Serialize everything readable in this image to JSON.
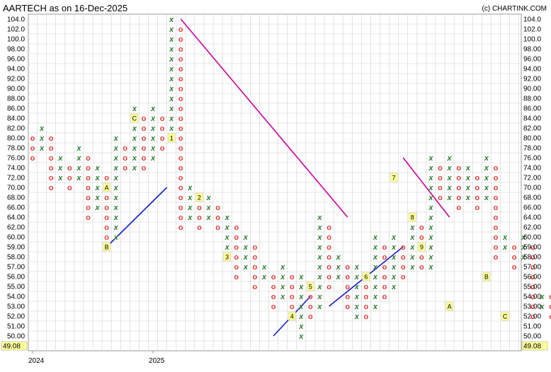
{
  "chart_data": {
    "type": "point-and-figure",
    "title": "AARTECH as on 16-Dec-2025",
    "copyright": "(c) CHARTINK.COM",
    "y_ticks": [
      "104.0",
      "102.0",
      "100.0",
      "98.00",
      "96.00",
      "94.00",
      "92.00",
      "90.00",
      "88.00",
      "86.00",
      "84.00",
      "82.00",
      "80.00",
      "78.00",
      "76.00",
      "74.00",
      "72.00",
      "70.00",
      "68.00",
      "66.00",
      "64.00",
      "62.00",
      "60.00",
      "59.00",
      "58.00",
      "57.00",
      "56.00",
      "55.00",
      "54.00",
      "53.00",
      "52.00",
      "51.00",
      "50.00"
    ],
    "last_price": "49.08",
    "x_labels": [
      {
        "label": "2024",
        "col": 0
      },
      {
        "label": "2025",
        "col": 13
      }
    ],
    "colors": {
      "x": "#2e7d32",
      "o": "#e53935",
      "trend_down": "#cc0099",
      "trend_up": "#1a1acc",
      "grid": "#d0d0d0",
      "price_box": "#ffff99",
      "month_box": "#ffff99"
    },
    "columns": [
      {
        "t": "O",
        "top": "80.00",
        "bottom": "76.00"
      },
      {
        "t": "X",
        "bottom": "78.00",
        "top": "82.00"
      },
      {
        "t": "O",
        "top": "80.00",
        "bottom": "70.00"
      },
      {
        "t": "X",
        "bottom": "72.00",
        "top": "76.00"
      },
      {
        "t": "O",
        "top": "74.00",
        "bottom": "70.00"
      },
      {
        "t": "X",
        "bottom": "72.00",
        "top": "78.00"
      },
      {
        "t": "O",
        "top": "76.00",
        "bottom": "64.00"
      },
      {
        "t": "X",
        "bottom": "66.00",
        "top": "74.00"
      },
      {
        "t": "O",
        "top": "72.00",
        "bottom": "59.00"
      },
      {
        "t": "X",
        "bottom": "60.00",
        "top": "80.00"
      },
      {
        "t": "O",
        "top": "78.00",
        "bottom": "74.00"
      },
      {
        "t": "X",
        "bottom": "74.00",
        "top": "86.00"
      },
      {
        "t": "O",
        "top": "84.00",
        "bottom": "74.00"
      },
      {
        "t": "X",
        "bottom": "76.00",
        "top": "86.00"
      },
      {
        "t": "O",
        "top": "84.00",
        "bottom": "78.00"
      },
      {
        "t": "X",
        "bottom": "80.00",
        "top": "104.0"
      },
      {
        "t": "O",
        "top": "102.0",
        "bottom": "62.00"
      },
      {
        "t": "X",
        "bottom": "64.00",
        "top": "70.00"
      },
      {
        "t": "O",
        "top": "68.00",
        "bottom": "62.00"
      },
      {
        "t": "X",
        "bottom": "64.00",
        "top": "68.00"
      },
      {
        "t": "O",
        "top": "66.00",
        "bottom": "62.00"
      },
      {
        "t": "X",
        "bottom": "58.00",
        "top": "64.00"
      },
      {
        "t": "O",
        "top": "62.00",
        "bottom": "56.00"
      },
      {
        "t": "X",
        "bottom": "57.00",
        "top": "60.00"
      },
      {
        "t": "O",
        "top": "59.00",
        "bottom": "55.00"
      },
      {
        "t": "X",
        "bottom": "56.00",
        "top": "57.00"
      },
      {
        "t": "O",
        "top": "56.00",
        "bottom": "53.00"
      },
      {
        "t": "X",
        "bottom": "54.00",
        "top": "57.00"
      },
      {
        "t": "O",
        "top": "56.00",
        "bottom": "52.00"
      },
      {
        "t": "X",
        "bottom": "50.00",
        "top": "56.00"
      },
      {
        "t": "O",
        "top": "55.00",
        "bottom": "52.00"
      },
      {
        "t": "X",
        "bottom": "53.00",
        "top": "64.00"
      },
      {
        "t": "O",
        "top": "62.00",
        "bottom": "55.00"
      },
      {
        "t": "X",
        "bottom": "56.00",
        "top": "58.00"
      },
      {
        "t": "O",
        "top": "57.00",
        "bottom": "53.00"
      },
      {
        "t": "X",
        "bottom": "52.00",
        "top": "57.00"
      },
      {
        "t": "O",
        "top": "56.00",
        "bottom": "52.00"
      },
      {
        "t": "X",
        "bottom": "53.00",
        "top": "60.00"
      },
      {
        "t": "O",
        "top": "59.00",
        "bottom": "54.00"
      },
      {
        "t": "X",
        "bottom": "55.00",
        "top": "60.00"
      },
      {
        "t": "O",
        "top": "59.00",
        "bottom": "56.00"
      },
      {
        "t": "X",
        "bottom": "57.00",
        "top": "62.00"
      },
      {
        "t": "O",
        "top": "62.00",
        "bottom": "57.00"
      },
      {
        "t": "X",
        "bottom": "57.00",
        "top": "76.00"
      },
      {
        "t": "O",
        "top": "74.00",
        "bottom": "68.00"
      },
      {
        "t": "X",
        "bottom": "68.00",
        "top": "76.00"
      },
      {
        "t": "O",
        "top": "74.00",
        "bottom": "66.00"
      },
      {
        "t": "X",
        "bottom": "68.00",
        "top": "74.00"
      },
      {
        "t": "O",
        "top": "72.00",
        "bottom": "66.00"
      },
      {
        "t": "X",
        "bottom": "68.00",
        "top": "76.00"
      },
      {
        "t": "O",
        "top": "74.00",
        "bottom": "58.00"
      },
      {
        "t": "X",
        "bottom": "59.00",
        "top": "60.00"
      },
      {
        "t": "O",
        "top": "59.00",
        "bottom": "57.00"
      },
      {
        "t": "X",
        "bottom": "58.00",
        "top": "60.00"
      },
      {
        "t": "O",
        "top": "59.00",
        "bottom": "52.00"
      },
      {
        "t": "X",
        "bottom": "53.00",
        "top": "54.00"
      },
      {
        "t": "O",
        "top": "54.00",
        "bottom": "52.00"
      },
      {
        "t": "X",
        "bottom": "53.00",
        "top": "64.00"
      },
      {
        "t": "O",
        "top": "62.00",
        "bottom": "58.00"
      },
      {
        "t": "X",
        "bottom": "59.00",
        "top": "62.00"
      },
      {
        "t": "O",
        "top": "60.00",
        "bottom": "49.08"
      },
      {
        "t": "X",
        "bottom": "50.00",
        "top": "53.00"
      },
      {
        "t": "O",
        "top": "52.00",
        "bottom": "49.08"
      }
    ],
    "month_markers": [
      {
        "label": "A",
        "col": 8,
        "price": "70.00"
      },
      {
        "label": "B",
        "col": 8,
        "price": "59.00"
      },
      {
        "label": "C",
        "col": 11,
        "price": "84.00"
      },
      {
        "label": "1",
        "col": 15,
        "price": "80.00"
      },
      {
        "label": "2",
        "col": 18,
        "price": "68.00"
      },
      {
        "label": "3",
        "col": 21,
        "price": "58.00"
      },
      {
        "label": "4",
        "col": 28,
        "price": "52.00"
      },
      {
        "label": "5",
        "col": 30,
        "price": "55.00"
      },
      {
        "label": "6",
        "col": 36,
        "price": "56.00"
      },
      {
        "label": "7",
        "col": 39,
        "price": "72.00"
      },
      {
        "label": "8",
        "col": 41,
        "price": "64.00"
      },
      {
        "label": "9",
        "col": 42,
        "price": "59.00"
      },
      {
        "label": "A",
        "col": 45,
        "price": "53.00"
      },
      {
        "label": "B",
        "col": 49,
        "price": "56.00"
      },
      {
        "label": "C",
        "col": 51,
        "price": "52.00"
      }
    ],
    "trendlines": [
      {
        "kind": "down",
        "from": {
          "col": 16,
          "price": "104.0"
        },
        "to": {
          "col": 34,
          "price": "64.00"
        }
      },
      {
        "kind": "down",
        "from": {
          "col": 40,
          "price": "76.00"
        },
        "to": {
          "col": 45,
          "price": "64.00"
        }
      },
      {
        "kind": "up",
        "from": {
          "col": 8,
          "price": "59.00"
        },
        "to": {
          "col": 14.5,
          "price": "70.00"
        }
      },
      {
        "kind": "up",
        "from": {
          "col": 26,
          "price": "50.00"
        },
        "to": {
          "col": 30,
          "price": "54.00"
        }
      },
      {
        "kind": "up",
        "from": {
          "col": 32,
          "price": "53.00"
        },
        "to": {
          "col": 40,
          "price": "59.00"
        }
      }
    ]
  }
}
